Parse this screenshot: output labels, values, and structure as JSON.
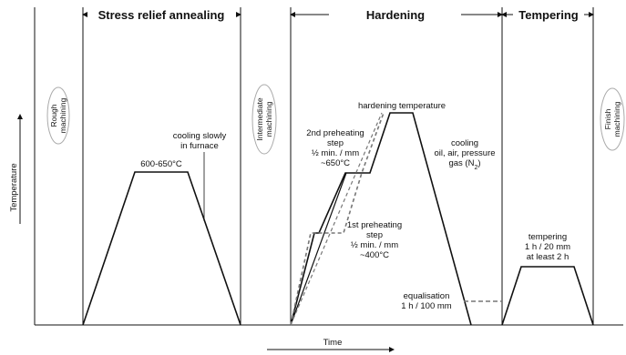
{
  "phases": {
    "stress_relief": "Stress relief annealing",
    "hardening": "Hardening",
    "tempering": "Tempering"
  },
  "operations": {
    "rough_l1": "Rough",
    "rough_l2": "machining",
    "intermediate_l1": "Intermediate",
    "intermediate_l2": "machining",
    "finish_l1": "Finish",
    "finish_l2": "machining"
  },
  "axes": {
    "y_label": "Temperature",
    "x_label": "Time"
  },
  "annealing": {
    "temp": "600-650°C",
    "cooling_l1": "cooling slowly",
    "cooling_l2": "in furnace"
  },
  "hardening": {
    "hardening_temp": "hardening temperature",
    "pre2_l1": "2nd preheating",
    "pre2_l2": "step",
    "pre2_l3": "½ min. / mm",
    "pre2_l4": "~650°C",
    "pre1_l1": "1st preheating",
    "pre1_l2": "step",
    "pre1_l3": "½ min. / mm",
    "pre1_l4": "~400°C",
    "cooling_l1": "cooling",
    "cooling_l2": "oil, air, pressure",
    "cooling_l3": "gas (N",
    "cooling_l3_sub": "2",
    "cooling_l3_end": ")",
    "equal_l1": "equalisation",
    "equal_l2": "1 h / 100 mm"
  },
  "tempering": {
    "l1": "tempering",
    "l2": "1 h / 20 mm",
    "l3": "at least 2 h"
  },
  "colors": {
    "line": "#111111",
    "dashed": "#777777",
    "ellipse": "#aaaaaa"
  }
}
